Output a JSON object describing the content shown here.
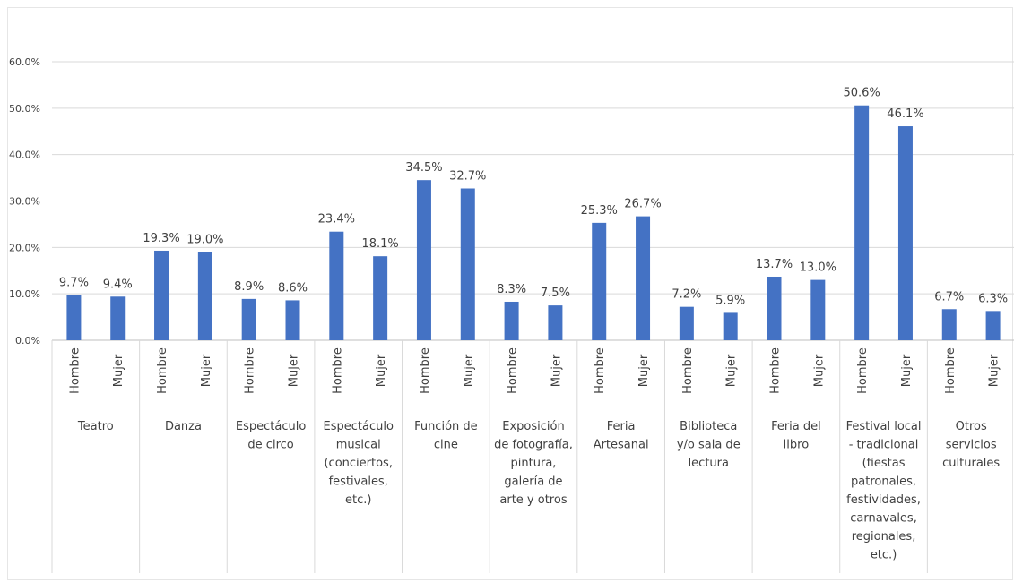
{
  "chart_data": {
    "type": "bar",
    "ylim": [
      0,
      60
    ],
    "y_ticks": [
      "0.0%",
      "10.0%",
      "20.0%",
      "30.0%",
      "40.0%",
      "50.0%",
      "60.0%"
    ],
    "grid": true,
    "bar_color": "#4472c4",
    "groups": [
      {
        "label_lines": [
          "Teatro"
        ],
        "bars": [
          {
            "label": "Hombre",
            "value": 9.7,
            "value_label": "9.7%"
          },
          {
            "label": "Mujer",
            "value": 9.4,
            "value_label": "9.4%"
          }
        ]
      },
      {
        "label_lines": [
          "Danza"
        ],
        "bars": [
          {
            "label": "Hombre",
            "value": 19.3,
            "value_label": "19.3%"
          },
          {
            "label": "Mujer",
            "value": 19.0,
            "value_label": "19.0%"
          }
        ]
      },
      {
        "label_lines": [
          "Espectáculo",
          "de circo"
        ],
        "bars": [
          {
            "label": "Hombre",
            "value": 8.9,
            "value_label": "8.9%"
          },
          {
            "label": "Mujer",
            "value": 8.6,
            "value_label": "8.6%"
          }
        ]
      },
      {
        "label_lines": [
          "Espectáculo",
          "musical",
          "(conciertos,",
          "festivales,",
          "etc.)"
        ],
        "bars": [
          {
            "label": "Hombre",
            "value": 23.4,
            "value_label": "23.4%"
          },
          {
            "label": "Mujer",
            "value": 18.1,
            "value_label": "18.1%"
          }
        ]
      },
      {
        "label_lines": [
          "Función de",
          "cine"
        ],
        "bars": [
          {
            "label": "Hombre",
            "value": 34.5,
            "value_label": "34.5%"
          },
          {
            "label": "Mujer",
            "value": 32.7,
            "value_label": "32.7%"
          }
        ]
      },
      {
        "label_lines": [
          "Exposición",
          "de fotografía,",
          "pintura,",
          "galería de",
          "arte y otros"
        ],
        "bars": [
          {
            "label": "Hombre",
            "value": 8.3,
            "value_label": "8.3%"
          },
          {
            "label": "Mujer",
            "value": 7.5,
            "value_label": "7.5%"
          }
        ]
      },
      {
        "label_lines": [
          "Feria",
          "Artesanal"
        ],
        "bars": [
          {
            "label": "Hombre",
            "value": 25.3,
            "value_label": "25.3%"
          },
          {
            "label": "Mujer",
            "value": 26.7,
            "value_label": "26.7%"
          }
        ]
      },
      {
        "label_lines": [
          "Biblioteca",
          "y/o sala de",
          "lectura"
        ],
        "bars": [
          {
            "label": "Hombre",
            "value": 7.2,
            "value_label": "7.2%"
          },
          {
            "label": "Mujer",
            "value": 5.9,
            "value_label": "5.9%"
          }
        ]
      },
      {
        "label_lines": [
          "Feria del",
          "libro"
        ],
        "bars": [
          {
            "label": "Hombre",
            "value": 13.7,
            "value_label": "13.7%"
          },
          {
            "label": "Mujer",
            "value": 13.0,
            "value_label": "13.0%"
          }
        ]
      },
      {
        "label_lines": [
          "Festival local",
          "- tradicional",
          "(fiestas",
          "patronales,",
          "festividades,",
          "carnavales,",
          "regionales,",
          "etc.)"
        ],
        "bars": [
          {
            "label": "Hombre",
            "value": 50.6,
            "value_label": "50.6%"
          },
          {
            "label": "Mujer",
            "value": 46.1,
            "value_label": "46.1%"
          }
        ]
      },
      {
        "label_lines": [
          "Otros",
          "servicios",
          "culturales"
        ],
        "bars": [
          {
            "label": "Hombre",
            "value": 6.7,
            "value_label": "6.7%"
          },
          {
            "label": "Mujer",
            "value": 6.3,
            "value_label": "6.3%"
          }
        ]
      }
    ]
  }
}
